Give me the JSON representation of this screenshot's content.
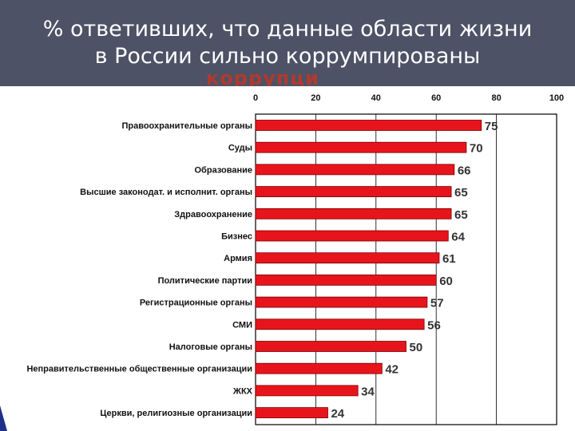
{
  "header": {
    "title_line1": "% ответивших, что данные области жизни",
    "title_line2": "в России сильно коррумпированы",
    "ghost_text": "коррупци"
  },
  "colors": {
    "header_bg": "#4d5266",
    "bar_fill": "#e8141c",
    "bar_stroke": "#7a0000",
    "ghost_text": "#b03a2e"
  },
  "chart_data": {
    "type": "bar",
    "orientation": "horizontal",
    "title": "% ответивших, что данные области жизни в России сильно коррумпированы",
    "xlim": [
      0,
      100
    ],
    "x_ticks": [
      0,
      20,
      40,
      60,
      80,
      100
    ],
    "grid": true,
    "categories": [
      "Правоохранительные органы",
      "Суды",
      "Образование",
      "Высшие законодат. и исполнит. органы",
      "Здравоохранение",
      "Бизнес",
      "Армия",
      "Политические партии",
      "Регистрационные органы",
      "СМИ",
      "Налоговые органы",
      "Неправительственные общественные организации",
      "ЖКХ",
      "Церкви, религиозные организации"
    ],
    "values": [
      75,
      70,
      66,
      65,
      65,
      64,
      61,
      60,
      57,
      56,
      50,
      42,
      34,
      24
    ]
  }
}
